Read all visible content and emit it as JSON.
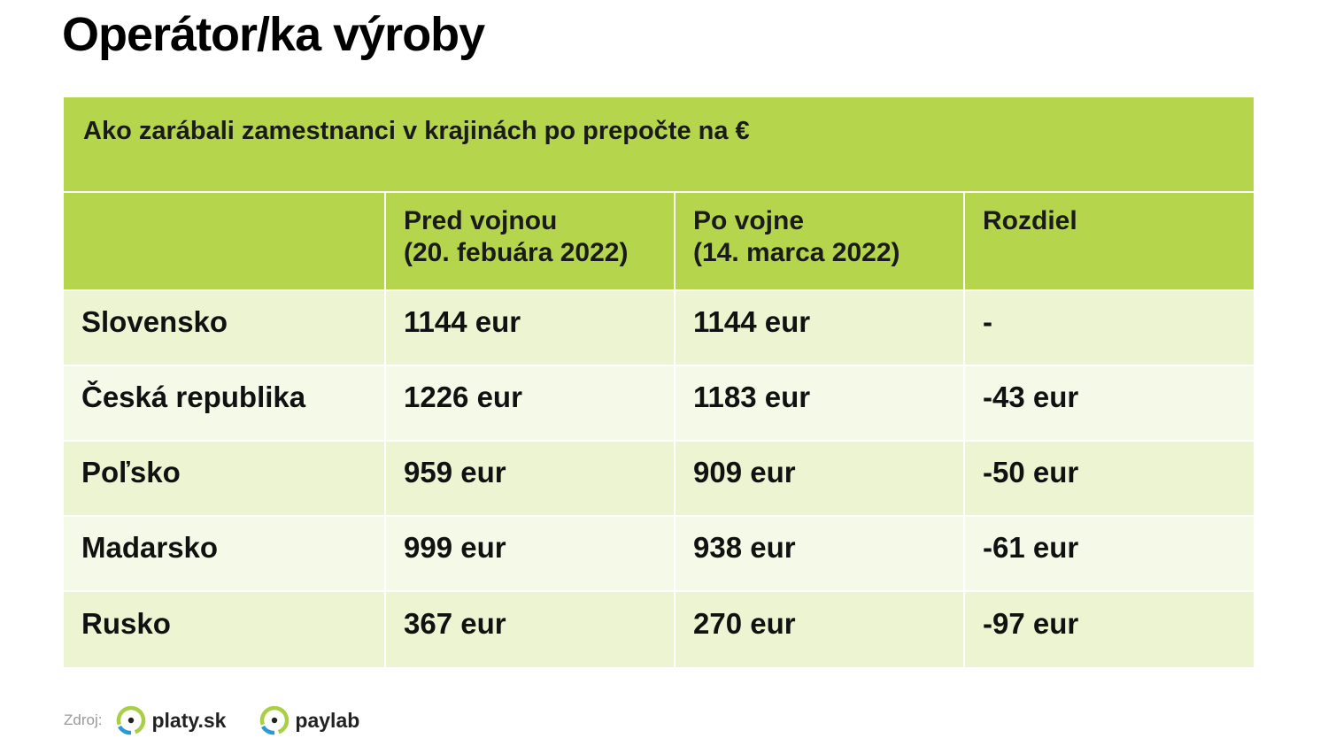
{
  "title": "Operátor/ka výroby",
  "table": {
    "caption": "Ako zarábali zamestnanci v krajinách po prepočte na €",
    "headers": [
      "",
      "Pred vojnou\n(20. febuára 2022)",
      "Po vojne\n(14. marca 2022)",
      "Rozdiel"
    ],
    "rows": [
      {
        "country": "Slovensko",
        "before": "1144 eur",
        "after": "1144 eur",
        "diff": "-"
      },
      {
        "country": "Česká republika",
        "before": "1226 eur",
        "after": "1183 eur",
        "diff": "-43 eur"
      },
      {
        "country": "Poľsko",
        "before": "959 eur",
        "after": "909 eur",
        "diff": "-50 eur"
      },
      {
        "country": "Madarsko",
        "before": "999 eur",
        "after": "938 eur",
        "diff": "-61 eur"
      },
      {
        "country": "Rusko",
        "before": "367 eur",
        "after": "270 eur",
        "diff": "-97 eur"
      }
    ]
  },
  "footer": {
    "source_label": "Zdroj:",
    "logos": [
      {
        "name": "platy.sk",
        "icon": "ring-dot-logo-icon"
      },
      {
        "name": "paylab",
        "icon": "ring-dot-logo-icon"
      }
    ]
  },
  "colors": {
    "header_green": "#b5d64c",
    "row_odd": "#ecf4d2",
    "row_even": "#f5f9e8",
    "logo_green": "#a8cf45",
    "logo_blue": "#2a9ad6"
  }
}
